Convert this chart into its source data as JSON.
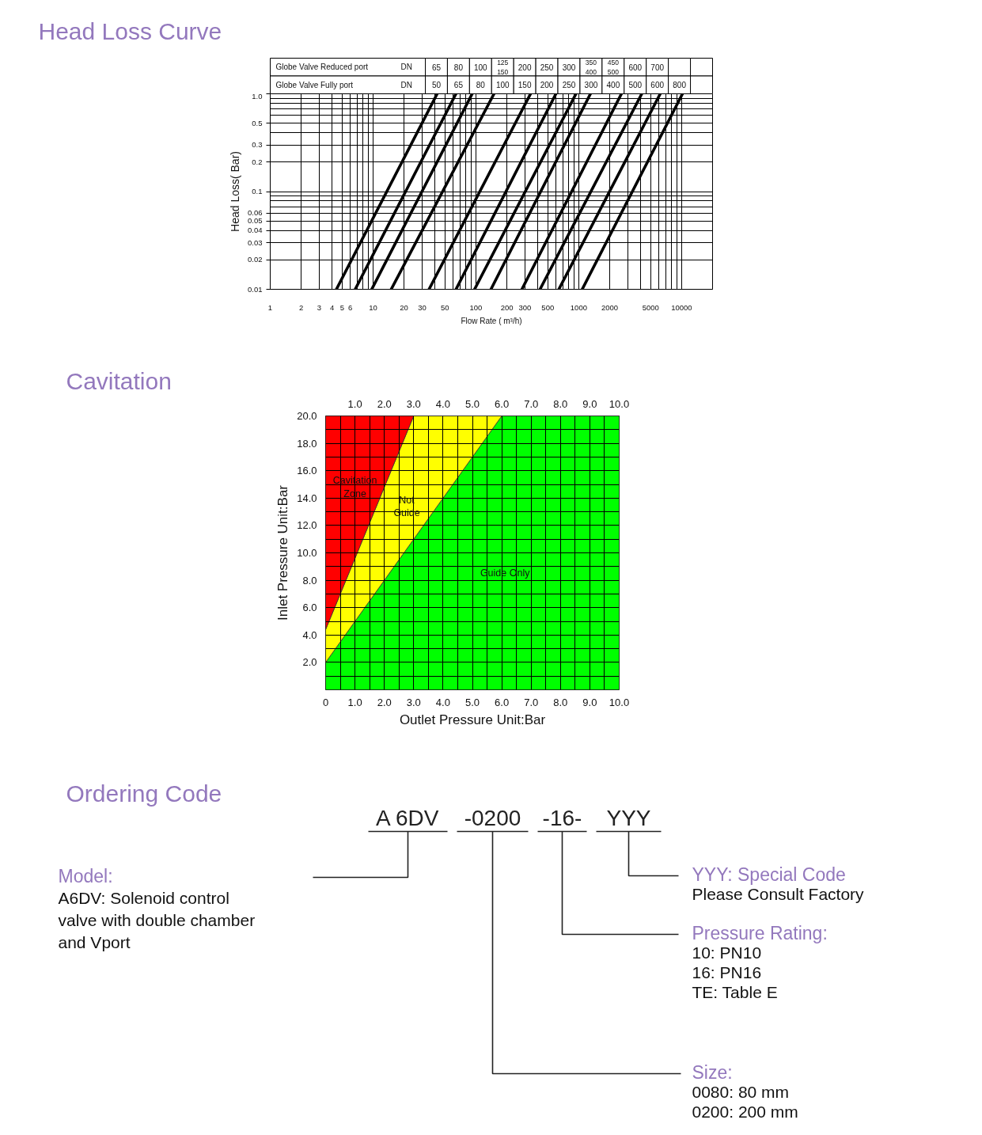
{
  "chart_data": [
    {
      "type": "heatmap",
      "title": "Head Loss Curve",
      "categories": [
        null,
        null,
        null,
        null,
        null,
        null,
        null,
        null,
        null,
        null,
        null,
        null,
        null
      ],
      "y_categories": [
        "Globe Valve Reduced port",
        "Globe Valve Fully port"
      ],
      "y2_categories": [
        "DN",
        "DN"
      ],
      "cells": [
        [
          null,
          null,
          null,
          null,
          null,
          null,
          null,
          null,
          null,
          null,
          null,
          null,
          null
        ],
        [
          null,
          null,
          null,
          null,
          null,
          null,
          null,
          null,
          null,
          null,
          null,
          null,
          null
        ]
      ],
      "cell_labels": [
        [
          "65",
          "80",
          "100",
          "125\n150",
          "200",
          "250",
          "300",
          "350\n400",
          "450\n500",
          "600",
          "700",
          null,
          null
        ],
        [
          "50",
          "65",
          "80",
          "100",
          "150",
          "200",
          "250",
          "300",
          "400",
          "500",
          "600",
          "800",
          null
        ]
      ]
    },
    {
      "type": "line",
      "xlabel": "Flow Rate ( m³/h)",
      "ylabel": "Head Loss( Bar)",
      "log": "xy",
      "xlim": [
        1,
        20000
      ],
      "ylim": [
        0.01,
        1
      ],
      "xticks": [
        1,
        2,
        3,
        4,
        5,
        6,
        {
          "value": 7,
          "label": null
        },
        {
          "value": 8,
          "label": null
        },
        {
          "value": 9,
          "label": null
        },
        10,
        20,
        30,
        {
          "value": 40,
          "label": null
        },
        50,
        {
          "value": 60,
          "label": null
        },
        {
          "value": 70,
          "label": null
        },
        {
          "value": 80,
          "label": null
        },
        {
          "value": 90,
          "label": null
        },
        100,
        200,
        300,
        {
          "value": 400,
          "label": null
        },
        500,
        {
          "value": 600,
          "label": null
        },
        {
          "value": 700,
          "label": null
        },
        {
          "value": 800,
          "label": null
        },
        {
          "value": 900,
          "label": null
        },
        1000,
        2000,
        {
          "value": 3000,
          "label": null
        },
        {
          "value": 4000,
          "label": null
        },
        5000,
        {
          "value": 6000,
          "label": null
        },
        {
          "value": 7000,
          "label": null
        },
        {
          "value": 8000,
          "label": null
        },
        {
          "value": 9000,
          "label": null
        },
        10000
      ],
      "yticks": [
        0.01,
        0.02,
        0.03,
        0.04,
        0.05,
        0.06,
        {
          "value": 0.07,
          "label": null
        },
        {
          "value": 0.08,
          "label": null
        },
        {
          "value": 0.09,
          "label": null
        },
        0.1,
        0.2,
        0.3,
        {
          "value": 0.4,
          "label": null
        },
        0.5,
        {
          "value": 0.6,
          "label": null
        },
        {
          "value": 0.7,
          "label": null
        },
        {
          "value": 0.8,
          "label": null
        },
        {
          "value": 0.9,
          "label": null
        },
        {
          "value": 1,
          "label": "1.0"
        }
      ],
      "grid": true,
      "series": [
        {
          "color": "#000000",
          "x": [
            4.4,
            42
          ],
          "values": [
            0.01,
            1
          ]
        },
        {
          "color": "#000000",
          "x": [
            6.7,
            64
          ],
          "values": [
            0.01,
            1
          ]
        },
        {
          "color": "#000000",
          "x": [
            9.7,
            92
          ],
          "values": [
            0.01,
            1
          ]
        },
        {
          "color": "#000000",
          "x": [
            15,
            150
          ],
          "values": [
            0.01,
            1
          ]
        },
        {
          "color": "#000000",
          "x": [
            35,
            340
          ],
          "values": [
            0.01,
            1
          ]
        },
        {
          "color": "#000000",
          "x": [
            64,
            600
          ],
          "values": [
            0.01,
            1
          ]
        },
        {
          "color": "#000000",
          "x": [
            97,
            940
          ],
          "values": [
            0.01,
            1
          ]
        },
        {
          "color": "#000000",
          "x": [
            140,
            1300
          ],
          "values": [
            0.01,
            1
          ]
        },
        {
          "color": "#000000",
          "x": [
            280,
            2600
          ],
          "values": [
            0.01,
            1
          ]
        },
        {
          "color": "#000000",
          "x": [
            420,
            4100
          ],
          "values": [
            0.01,
            1
          ]
        },
        {
          "color": "#000000",
          "x": [
            640,
            6200
          ],
          "values": [
            0.01,
            1
          ]
        },
        {
          "color": "#000000",
          "x": [
            1080,
            10200
          ],
          "values": [
            0.01,
            1
          ]
        }
      ]
    },
    {
      "type": "area",
      "title": "Cavitation",
      "xlabel": "Outlet Pressure Unit:Bar",
      "ylabel": "Inlet Pressure Unit:Bar",
      "stacked": true,
      "x": [
        0,
        3,
        6,
        10
      ],
      "series": [
        {
          "name": "Guide Only",
          "color": "#00ff00",
          "values": [
            2,
            11,
            20,
            20
          ]
        },
        {
          "name": "Not\nGuide",
          "color": "#ffff00",
          "values": [
            2.4,
            9,
            0,
            0
          ]
        },
        {
          "name": "Cavitation\nZone",
          "color": "#ff0000",
          "values": [
            15.6,
            0,
            0,
            0
          ]
        }
      ],
      "xlim": [
        0,
        10
      ],
      "ylim": [
        0,
        20
      ],
      "x2lim": [
        0,
        10
      ],
      "xticks": [
        0,
        {
          "value": 0.5,
          "label": null
        },
        {
          "value": 1,
          "label": "1.0"
        },
        {
          "value": 1.5,
          "label": null
        },
        {
          "value": 2,
          "label": "2.0"
        },
        {
          "value": 2.5,
          "label": null
        },
        {
          "value": 3,
          "label": "3.0"
        },
        {
          "value": 3.5,
          "label": null
        },
        {
          "value": 4,
          "label": "4.0"
        },
        {
          "value": 4.5,
          "label": null
        },
        {
          "value": 5,
          "label": "5.0"
        },
        {
          "value": 5.5,
          "label": null
        },
        {
          "value": 6,
          "label": "6.0"
        },
        {
          "value": 6.5,
          "label": null
        },
        {
          "value": 7,
          "label": "7.0"
        },
        {
          "value": 7.5,
          "label": null
        },
        {
          "value": 8,
          "label": "8.0"
        },
        {
          "value": 8.5,
          "label": null
        },
        {
          "value": 9,
          "label": "9.0"
        },
        {
          "value": 9.5,
          "label": null
        },
        {
          "value": 10,
          "label": "10.0"
        }
      ],
      "x2ticks": [
        {
          "value": 1,
          "label": "1.0"
        },
        {
          "value": 2,
          "label": "2.0"
        },
        {
          "value": 3,
          "label": "3.0"
        },
        {
          "value": 4,
          "label": "4.0"
        },
        {
          "value": 5,
          "label": "5.0"
        },
        {
          "value": 6,
          "label": "6.0"
        },
        {
          "value": 7,
          "label": "7.0"
        },
        {
          "value": 8,
          "label": "8.0"
        },
        {
          "value": 9,
          "label": "9.0"
        },
        {
          "value": 10,
          "label": "10.0"
        }
      ],
      "yticks": [
        {
          "value": 1,
          "label": null
        },
        {
          "value": 2,
          "label": "2.0"
        },
        {
          "value": 3,
          "label": null
        },
        {
          "value": 4,
          "label": "4.0"
        },
        {
          "value": 5,
          "label": null
        },
        {
          "value": 6,
          "label": "6.0"
        },
        {
          "value": 7,
          "label": null
        },
        {
          "value": 8,
          "label": "8.0"
        },
        {
          "value": 9,
          "label": null
        },
        {
          "value": 10,
          "label": "10.0"
        },
        {
          "value": 11,
          "label": null
        },
        {
          "value": 12,
          "label": "12.0"
        },
        {
          "value": 13,
          "label": null
        },
        {
          "value": 14,
          "label": "14.0"
        },
        {
          "value": 15,
          "label": null
        },
        {
          "value": 16,
          "label": "16.0"
        },
        {
          "value": 17,
          "label": null
        },
        {
          "value": 18,
          "label": "18.0"
        },
        {
          "value": 19,
          "label": null
        },
        {
          "value": 20,
          "label": "20.0"
        }
      ],
      "grid": true
    },
    {
      "type": "other",
      "title": "Ordering Code",
      "annotations": [
        "A 6DV",
        "-0200",
        "-16-",
        "YYY",
        "Model:",
        "A6DV: Solenoid control",
        "valve with double chamber",
        "and Vport",
        "YYY: Special Code",
        "Please Consult Factory",
        "Pressure Rating:",
        "10: PN10",
        "16: PN16",
        "TE: Table E",
        "Size:",
        "0080: 80 mm",
        "0200: 200 mm"
      ]
    }
  ]
}
